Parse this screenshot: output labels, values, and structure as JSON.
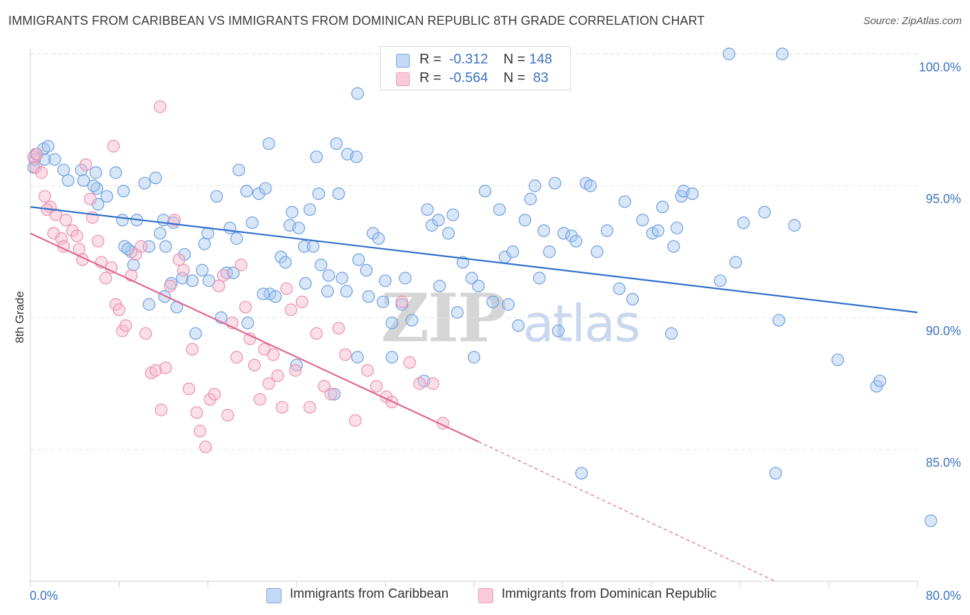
{
  "header": {
    "title": "IMMIGRANTS FROM CARIBBEAN VS IMMIGRANTS FROM DOMINICAN REPUBLIC 8TH GRADE CORRELATION CHART",
    "source": "Source: ZipAtlas.com"
  },
  "watermark": {
    "zip": "ZIP",
    "atlas": "atlas"
  },
  "legend": {
    "r_label": "R =",
    "n_label": "N =",
    "rows": [
      {
        "r": "-0.312",
        "n": "148",
        "color": "#a9c8f0"
      },
      {
        "r": "-0.564",
        "n": "83",
        "color": "#f7b9cc"
      }
    ]
  },
  "chart_data": {
    "type": "scatter",
    "title": "IMMIGRANTS FROM CARIBBEAN VS IMMIGRANTS FROM DOMINICAN REPUBLIC 8TH GRADE CORRELATION CHART",
    "ylabel": "8th Grade",
    "xlabel": "",
    "xlim": [
      0,
      80
    ],
    "ylim": [
      80.0,
      100.5
    ],
    "x_tick_labels": [
      "0.0%",
      "80.0%"
    ],
    "y_ticks": [
      85,
      90,
      95,
      100
    ],
    "y_tick_labels": [
      "85.0%",
      "90.0%",
      "95.0%",
      "100.0%"
    ],
    "grid": true,
    "legend_position": "top-center",
    "series": [
      {
        "name": "Immigrants from Caribbean",
        "color": "#6d9fe0",
        "fill": "#a9c8f0",
        "line_color": "#2f6fcc",
        "trend": {
          "x": [
            0,
            80
          ],
          "y": [
            94.2,
            90.2
          ],
          "dashed_from": null
        },
        "points": [
          [
            0.3,
            95.7
          ],
          [
            0.4,
            96.0
          ],
          [
            0.5,
            96.2
          ],
          [
            1.3,
            96.0
          ],
          [
            1.2,
            96.4
          ],
          [
            1.6,
            96.5
          ],
          [
            2.2,
            96.0
          ],
          [
            3.0,
            95.6
          ],
          [
            3.4,
            95.2
          ],
          [
            4.6,
            95.6
          ],
          [
            4.8,
            95.2
          ],
          [
            5.9,
            95.5
          ],
          [
            6.0,
            94.9
          ],
          [
            6.9,
            94.6
          ],
          [
            6.1,
            94.3
          ],
          [
            5.7,
            95.0
          ],
          [
            7.7,
            95.5
          ],
          [
            8.4,
            94.8
          ],
          [
            8.3,
            93.7
          ],
          [
            9.6,
            93.7
          ],
          [
            10.3,
            95.1
          ],
          [
            11.3,
            95.3
          ],
          [
            12.0,
            93.7
          ],
          [
            11.7,
            93.2
          ],
          [
            12.2,
            92.7
          ],
          [
            12.9,
            93.6
          ],
          [
            13.9,
            92.4
          ],
          [
            12.7,
            91.3
          ],
          [
            13.7,
            91.5
          ],
          [
            14.6,
            91.4
          ],
          [
            15.5,
            91.8
          ],
          [
            15.7,
            92.8
          ],
          [
            16.0,
            93.2
          ],
          [
            16.8,
            94.6
          ],
          [
            18.0,
            93.4
          ],
          [
            18.6,
            93.0
          ],
          [
            18.8,
            95.6
          ],
          [
            19.5,
            94.8
          ],
          [
            17.7,
            91.7
          ],
          [
            17.2,
            90.0
          ],
          [
            19.6,
            89.8
          ],
          [
            20.0,
            93.6
          ],
          [
            20.6,
            94.7
          ],
          [
            21.2,
            94.9
          ],
          [
            21.5,
            96.6
          ],
          [
            21.6,
            90.9
          ],
          [
            22.6,
            92.3
          ],
          [
            23.0,
            92.1
          ],
          [
            23.4,
            93.5
          ],
          [
            23.6,
            94.0
          ],
          [
            24.2,
            93.4
          ],
          [
            24.7,
            92.7
          ],
          [
            25.5,
            92.7
          ],
          [
            25.2,
            94.1
          ],
          [
            26.0,
            94.7
          ],
          [
            26.2,
            92.0
          ],
          [
            26.8,
            91.0
          ],
          [
            27.8,
            94.7
          ],
          [
            25.8,
            96.1
          ],
          [
            27.6,
            96.6
          ],
          [
            28.6,
            96.2
          ],
          [
            29.4,
            96.1
          ],
          [
            29.5,
            98.5
          ],
          [
            28.1,
            91.5
          ],
          [
            29.6,
            92.2
          ],
          [
            30.3,
            91.8
          ],
          [
            30.9,
            93.2
          ],
          [
            31.4,
            93.0
          ],
          [
            32.0,
            91.4
          ],
          [
            32.6,
            89.8
          ],
          [
            33.8,
            91.5
          ],
          [
            34.4,
            89.9
          ],
          [
            35.8,
            94.1
          ],
          [
            36.2,
            93.5
          ],
          [
            36.8,
            93.7
          ],
          [
            37.7,
            93.2
          ],
          [
            38.1,
            93.9
          ],
          [
            39.0,
            92.1
          ],
          [
            39.8,
            91.5
          ],
          [
            40.4,
            91.2
          ],
          [
            41.0,
            94.8
          ],
          [
            42.3,
            94.1
          ],
          [
            42.8,
            92.3
          ],
          [
            43.5,
            92.5
          ],
          [
            44.6,
            93.7
          ],
          [
            45.1,
            94.5
          ],
          [
            45.5,
            95.0
          ],
          [
            46.3,
            93.3
          ],
          [
            46.8,
            92.5
          ],
          [
            47.3,
            95.1
          ],
          [
            48.1,
            93.2
          ],
          [
            48.8,
            93.1
          ],
          [
            49.2,
            92.9
          ],
          [
            50.1,
            95.1
          ],
          [
            50.5,
            95.0
          ],
          [
            51.1,
            92.5
          ],
          [
            52.0,
            93.3
          ],
          [
            53.6,
            94.4
          ],
          [
            54.3,
            90.7
          ],
          [
            55.2,
            93.7
          ],
          [
            56.1,
            93.2
          ],
          [
            56.6,
            93.3
          ],
          [
            57.0,
            94.2
          ],
          [
            57.8,
            89.4
          ],
          [
            58.3,
            93.4
          ],
          [
            58.7,
            94.6
          ],
          [
            58.9,
            94.8
          ],
          [
            59.7,
            94.7
          ],
          [
            62.2,
            91.4
          ],
          [
            63.6,
            92.1
          ],
          [
            64.3,
            93.6
          ],
          [
            66.2,
            94.0
          ],
          [
            67.5,
            89.9
          ],
          [
            68.9,
            93.5
          ],
          [
            72.8,
            88.4
          ],
          [
            76.3,
            87.4
          ],
          [
            76.6,
            87.6
          ],
          [
            63.0,
            100.0
          ],
          [
            67.8,
            100.0
          ],
          [
            67.2,
            84.1
          ],
          [
            81.2,
            82.3
          ],
          [
            47.6,
            89.5
          ],
          [
            49.7,
            84.1
          ],
          [
            44.0,
            89.7
          ],
          [
            40.0,
            88.5
          ],
          [
            35.5,
            87.6
          ],
          [
            27.4,
            87.1
          ],
          [
            29.5,
            88.5
          ],
          [
            32.6,
            88.5
          ],
          [
            21.0,
            90.9
          ],
          [
            24.0,
            88.2
          ],
          [
            10.7,
            92.7
          ],
          [
            9.1,
            92.5
          ],
          [
            8.5,
            92.7
          ],
          [
            8.8,
            92.6
          ],
          [
            9.3,
            92.0
          ],
          [
            10.7,
            90.5
          ],
          [
            12.1,
            90.8
          ],
          [
            13.2,
            90.4
          ],
          [
            14.9,
            89.4
          ],
          [
            16.1,
            91.4
          ],
          [
            18.3,
            91.7
          ],
          [
            22.1,
            90.8
          ],
          [
            24.8,
            91.3
          ],
          [
            26.9,
            91.6
          ],
          [
            28.5,
            91.0
          ],
          [
            30.5,
            90.8
          ],
          [
            31.8,
            90.6
          ],
          [
            33.5,
            90.5
          ],
          [
            36.9,
            91.2
          ],
          [
            38.5,
            90.2
          ],
          [
            41.7,
            90.6
          ],
          [
            43.1,
            90.5
          ],
          [
            45.9,
            91.5
          ],
          [
            53.1,
            91.1
          ],
          [
            58.0,
            92.7
          ]
        ]
      },
      {
        "name": "Immigrants from Dominican Republic",
        "color": "#ec8fad",
        "fill": "#f7b9cc",
        "line_color": "#e0658f",
        "trend": {
          "x": [
            0,
            40.4
          ],
          "y": [
            93.2,
            85.3
          ],
          "dashed_to": [
            67.2,
            80.0
          ]
        },
        "points": [
          [
            0.3,
            96.1
          ],
          [
            0.5,
            95.7
          ],
          [
            0.6,
            96.2
          ],
          [
            1.0,
            95.5
          ],
          [
            1.3,
            94.6
          ],
          [
            1.8,
            94.2
          ],
          [
            1.5,
            94.1
          ],
          [
            2.3,
            93.9
          ],
          [
            2.1,
            93.2
          ],
          [
            2.8,
            93.0
          ],
          [
            3.0,
            92.7
          ],
          [
            3.2,
            93.7
          ],
          [
            3.8,
            93.3
          ],
          [
            4.2,
            93.1
          ],
          [
            4.4,
            92.6
          ],
          [
            4.7,
            92.2
          ],
          [
            5.0,
            95.8
          ],
          [
            5.4,
            94.5
          ],
          [
            5.6,
            93.8
          ],
          [
            6.1,
            92.9
          ],
          [
            6.4,
            92.1
          ],
          [
            6.8,
            91.5
          ],
          [
            7.3,
            91.9
          ],
          [
            7.7,
            90.5
          ],
          [
            8.0,
            90.3
          ],
          [
            8.3,
            89.5
          ],
          [
            8.6,
            89.7
          ],
          [
            9.1,
            91.6
          ],
          [
            9.5,
            92.4
          ],
          [
            10.0,
            92.7
          ],
          [
            10.4,
            89.4
          ],
          [
            10.9,
            87.9
          ],
          [
            11.3,
            88.0
          ],
          [
            11.8,
            86.5
          ],
          [
            12.2,
            88.1
          ],
          [
            12.6,
            91.2
          ],
          [
            13.0,
            93.7
          ],
          [
            13.4,
            92.2
          ],
          [
            13.8,
            91.8
          ],
          [
            14.3,
            87.3
          ],
          [
            14.6,
            88.8
          ],
          [
            15.0,
            86.4
          ],
          [
            15.3,
            85.7
          ],
          [
            15.8,
            85.1
          ],
          [
            16.2,
            86.9
          ],
          [
            16.6,
            87.1
          ],
          [
            17.0,
            91.2
          ],
          [
            17.4,
            91.6
          ],
          [
            17.8,
            86.3
          ],
          [
            18.2,
            89.8
          ],
          [
            18.6,
            88.5
          ],
          [
            19.0,
            92.0
          ],
          [
            19.4,
            90.4
          ],
          [
            19.8,
            89.2
          ],
          [
            20.2,
            88.2
          ],
          [
            20.7,
            86.9
          ],
          [
            21.1,
            88.8
          ],
          [
            21.5,
            87.5
          ],
          [
            21.9,
            88.6
          ],
          [
            22.3,
            87.8
          ],
          [
            22.7,
            86.6
          ],
          [
            23.1,
            91.1
          ],
          [
            23.5,
            90.3
          ],
          [
            23.9,
            88.0
          ],
          [
            24.5,
            90.6
          ],
          [
            25.2,
            86.6
          ],
          [
            25.8,
            89.4
          ],
          [
            26.5,
            87.4
          ],
          [
            27.1,
            87.1
          ],
          [
            27.8,
            89.6
          ],
          [
            28.4,
            88.6
          ],
          [
            29.3,
            86.1
          ],
          [
            30.4,
            88.0
          ],
          [
            31.2,
            87.4
          ],
          [
            32.1,
            87.0
          ],
          [
            32.6,
            86.8
          ],
          [
            33.5,
            90.6
          ],
          [
            34.2,
            88.3
          ],
          [
            35.1,
            87.5
          ],
          [
            36.3,
            87.5
          ],
          [
            37.2,
            86.0
          ],
          [
            11.7,
            98.0
          ],
          [
            7.5,
            96.5
          ]
        ]
      }
    ]
  },
  "bottom_legend": {
    "items": [
      {
        "label": "Immigrants from Caribbean",
        "color": "#a9c8f0"
      },
      {
        "label": "Immigrants from Dominican Republic",
        "color": "#f7b9cc"
      }
    ]
  },
  "axes": {
    "y_title": "8th Grade",
    "x_min_label": "0.0%",
    "x_max_label": "80.0%"
  }
}
